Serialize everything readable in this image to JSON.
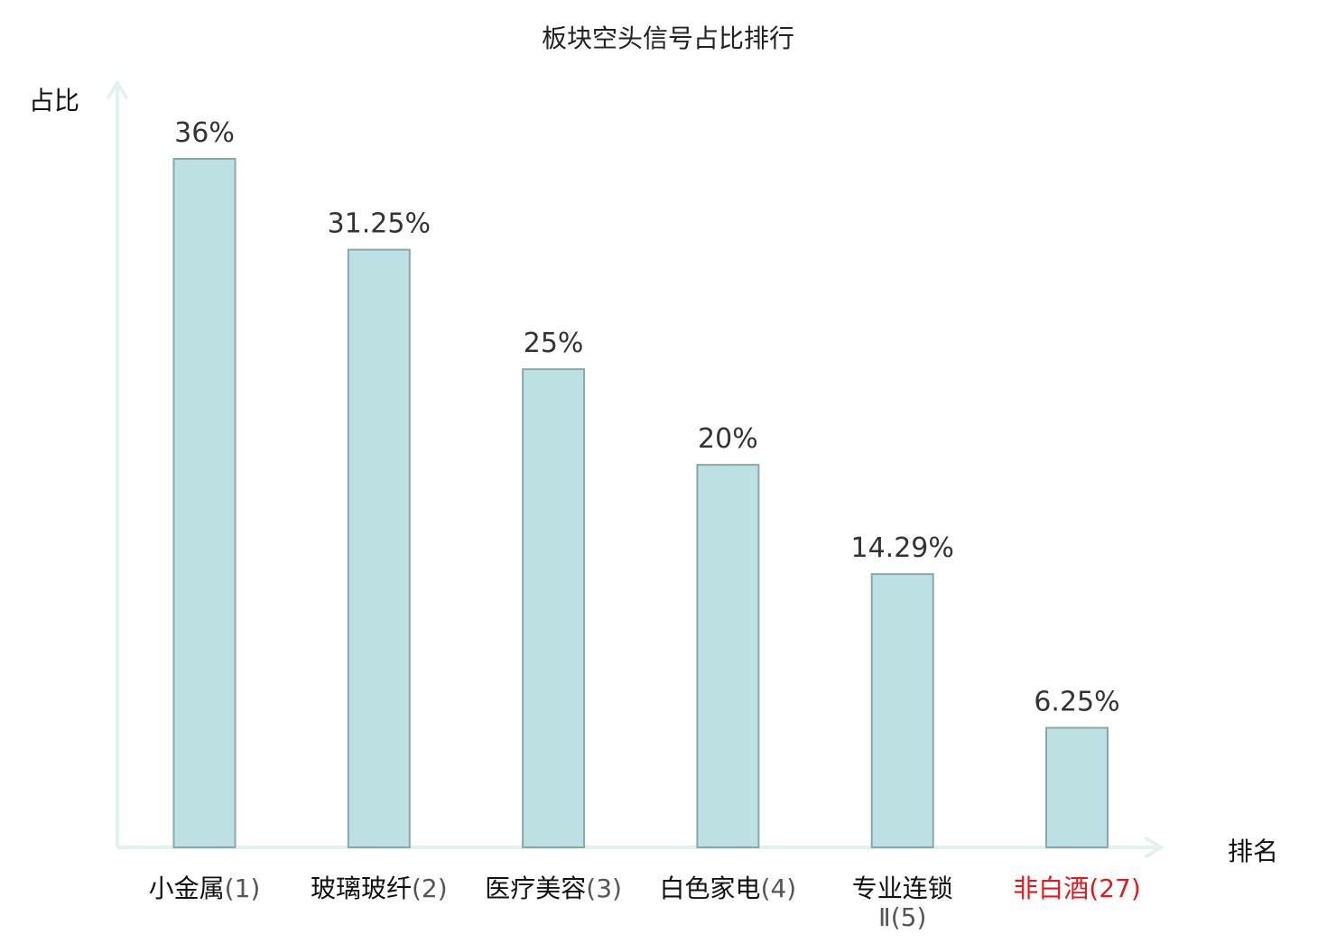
{
  "chart_data": {
    "type": "bar",
    "title": "板块空头信号占比排行",
    "ylabel": "占比",
    "xlabel": "排名",
    "categories": [
      {
        "name": "小金属",
        "rank": "(1)",
        "highlight": false
      },
      {
        "name": "玻璃玻纤",
        "rank": "(2)",
        "highlight": false
      },
      {
        "name": "医疗美容",
        "rank": "(3)",
        "highlight": false
      },
      {
        "name": "白色家电",
        "rank": "(4)",
        "highlight": false
      },
      {
        "name": "专业连锁",
        "name2": "Ⅱ",
        "rank": "(5)",
        "highlight": false
      },
      {
        "name": "非白酒",
        "rank": "(27)",
        "highlight": true
      }
    ],
    "values": [
      36,
      31.25,
      25,
      20,
      14.29,
      6.25
    ],
    "value_labels": [
      "36%",
      "31.25%",
      "25%",
      "20%",
      "14.29%",
      "6.25%"
    ],
    "ylim": [
      0,
      36
    ],
    "grid": false,
    "legend": "none"
  },
  "colors": {
    "bar_fill": "#bde0e2",
    "bar_stroke": "#8aa8ab",
    "axis": "#e2f2f0",
    "text": "#111111",
    "rank_text": "#555555",
    "highlight": "#e0191e"
  }
}
